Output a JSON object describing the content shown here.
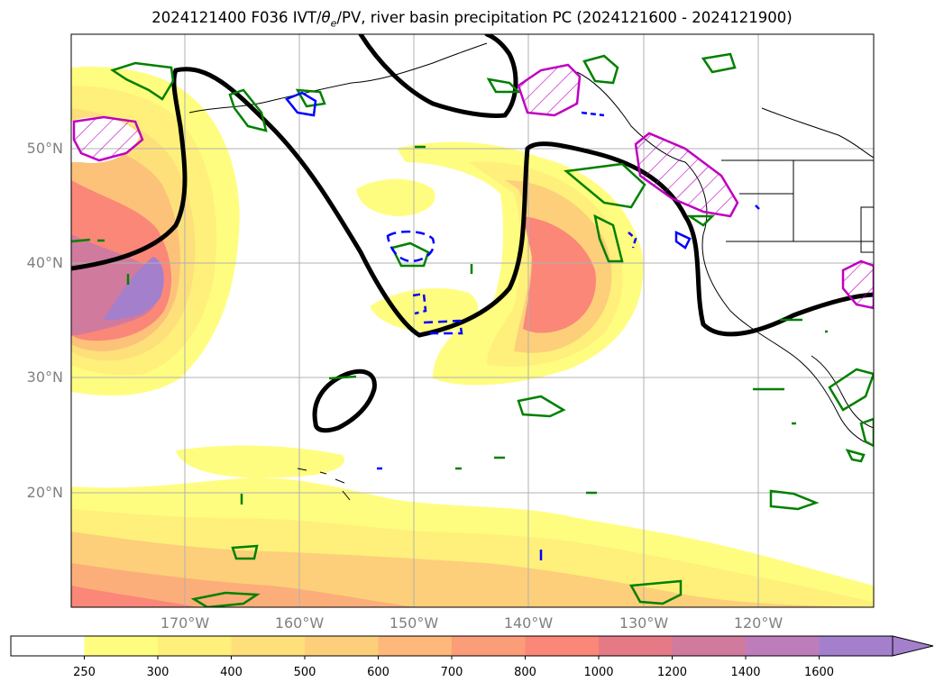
{
  "title": {
    "prefix": "2024121400 F036 IVT/",
    "theta": "θ",
    "theta_sub": "e",
    "suffix": "/PV, river basin precipitation PC (2024121600 - 2024121900)"
  },
  "axes": {
    "lat_labels": [
      "50°N",
      "40°N",
      "30°N",
      "20°N"
    ],
    "lon_labels": [
      "170°W",
      "160°W",
      "150°W",
      "140°W",
      "130°W",
      "120°W"
    ]
  },
  "colorbar": {
    "ticks": [
      "250",
      "300",
      "400",
      "500",
      "600",
      "700",
      "800",
      "1000",
      "1200",
      "1400",
      "1600"
    ],
    "colors": [
      "#ffffff",
      "#fffd80",
      "#fef07b",
      "#fde07a",
      "#fdcf7a",
      "#fdb87a",
      "#fc9d7a",
      "#fa8778",
      "#e57a86",
      "#d07a9e",
      "#bd7dbb",
      "#a47fcc"
    ],
    "extend": "max"
  },
  "contours": {
    "ivt_fill": "IVT shading",
    "pv_color": "#000000",
    "precip_pc_color": "#008000",
    "negative_color": "#0000ff",
    "hatched_color": "#c000c0"
  }
}
